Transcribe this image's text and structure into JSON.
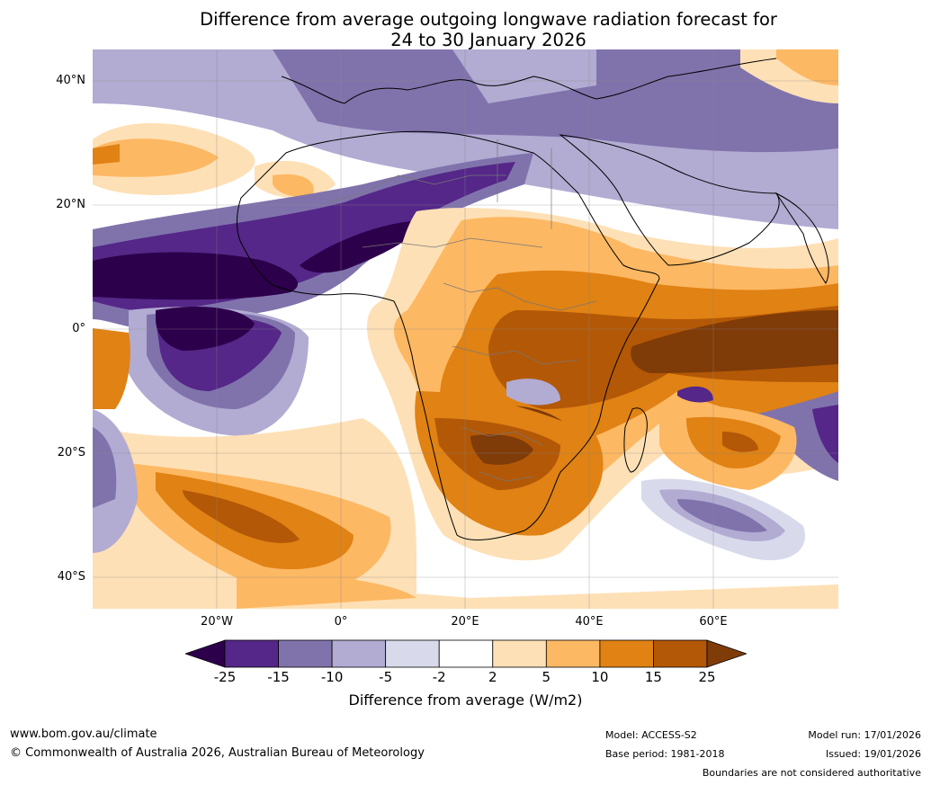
{
  "title": {
    "line1": "Difference from average outgoing longwave radiation forecast for",
    "line2": "24 to 30 January 2026"
  },
  "map": {
    "lat_labels": [
      "40°N",
      "20°N",
      "0°",
      "20°S",
      "40°S"
    ],
    "lon_labels": [
      "20°W",
      "0°",
      "20°E",
      "40°E",
      "60°E"
    ]
  },
  "colorbar": {
    "ticks": [
      "-25",
      "-15",
      "-10",
      "-5",
      "-2",
      "2",
      "5",
      "10",
      "15",
      "25"
    ],
    "colors": [
      "#2d004b",
      "#542788",
      "#8073ac",
      "#b2abd2",
      "#d8daeb",
      "#ffffff",
      "#fee0b6",
      "#fdb863",
      "#e08214",
      "#b35806",
      "#7f3b08"
    ],
    "label": "Difference from average (W/m2)"
  },
  "footer": {
    "website": "www.bom.gov.au/climate",
    "copyright": "© Commonwealth of Australia 2026, Australian Bureau of Meteorology",
    "model": "Model: ACCESS-S2",
    "base_period": "Base period: 1981-2018",
    "model_run": "Model run: 17/01/2026",
    "issued": "Issued: 19/01/2026",
    "disclaimer": "Boundaries are not considered authoritative"
  }
}
